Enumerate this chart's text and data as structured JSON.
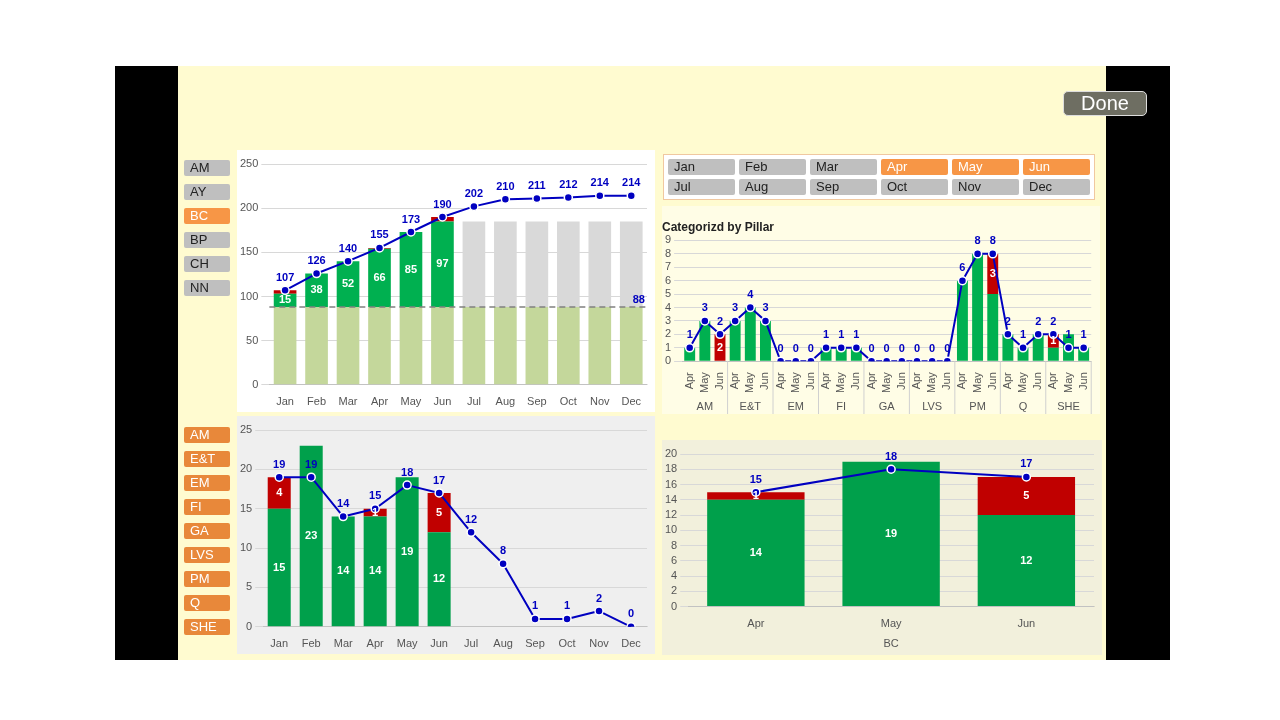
{
  "chart_data": [
    {
      "type": "other",
      "annotations": [
        "Done"
      ]
    },
    {
      "type": "other",
      "categories": [
        "AM",
        "AY",
        "BC",
        "BP",
        "CH",
        "NN"
      ],
      "colors": [
        "#bfbfbf",
        "#bfbfbf",
        "#f79646",
        "#bfbfbf",
        "#bfbfbf",
        "#bfbfbf"
      ]
    },
    {
      "type": "bar",
      "stacked": true,
      "categories": [
        "Jan",
        "Feb",
        "Mar",
        "Apr",
        "May",
        "Jun",
        "Jul",
        "Aug",
        "Sep",
        "Oct",
        "Nov",
        "Dec"
      ],
      "ylim": [
        0,
        250
      ],
      "yticks": [
        0,
        50,
        100,
        150,
        200,
        250
      ],
      "grid": "y",
      "marker": "circle",
      "series": [
        {
          "color": "#c4d79b",
          "values": [
            88,
            88,
            88,
            88,
            88,
            88,
            88,
            88,
            88,
            88,
            88,
            88
          ]
        },
        {
          "color": "#00b050",
          "values": [
            15,
            38,
            52,
            66,
            85,
            97,
            null,
            null,
            null,
            null,
            null,
            null
          ],
          "value_labels": [
            "15",
            "38",
            "52",
            "66",
            "85",
            "97",
            null,
            null,
            null,
            null,
            null,
            null
          ]
        },
        {
          "color": "#c00000",
          "values": [
            4,
            null,
            null,
            1,
            null,
            5,
            null,
            null,
            null,
            null,
            null,
            null
          ]
        },
        {
          "color": "#d9d9d9",
          "values": [
            null,
            null,
            null,
            null,
            null,
            null,
            97,
            97,
            97,
            97,
            97,
            97
          ]
        },
        {
          "type": "line",
          "color": "#0000c0",
          "values": [
            107,
            126,
            140,
            155,
            173,
            190,
            202,
            210,
            211,
            212,
            214,
            214
          ],
          "value_labels": [
            "107",
            "126",
            "140",
            "155",
            "173",
            "190",
            "202",
            "210",
            "211",
            "212",
            "214",
            "214"
          ]
        }
      ],
      "ref_lines": [
        {
          "axis": "y",
          "value": 88,
          "label": "88",
          "color": "#808080",
          "line_style": "dashed"
        }
      ]
    },
    {
      "type": "other",
      "categories": [
        "Jan",
        "Feb",
        "Mar",
        "Apr",
        "May",
        "Jun",
        "Jul",
        "Aug",
        "Sep",
        "Oct",
        "Nov",
        "Dec"
      ],
      "colors": [
        "#bfbfbf",
        "#bfbfbf",
        "#bfbfbf",
        "#f79646",
        "#f79646",
        "#f79646",
        "#bfbfbf",
        "#bfbfbf",
        "#bfbfbf",
        "#bfbfbf",
        "#bfbfbf",
        "#bfbfbf"
      ]
    },
    {
      "type": "bar",
      "stacked": true,
      "title": "Categorizd by Pillar",
      "categories": [
        "Apr",
        "May",
        "Jun",
        "Apr",
        "May",
        "Jun",
        "Apr",
        "May",
        "Jun",
        "Apr",
        "May",
        "Jun",
        "Apr",
        "May",
        "Jun",
        "Apr",
        "May",
        "Jun",
        "Apr",
        "May",
        "Jun",
        "Apr",
        "May",
        "Jun",
        "Apr",
        "May",
        "Jun"
      ],
      "ylim": [
        0,
        9
      ],
      "yticks": [
        0,
        1,
        2,
        3,
        4,
        5,
        6,
        7,
        8,
        9
      ],
      "grid": "y",
      "marker": "circle",
      "annotations": [
        "AM",
        "E&T",
        "EM",
        "FI",
        "GA",
        "LVS",
        "PM",
        "Q",
        "SHE"
      ],
      "series": [
        {
          "color": "#00b050",
          "values": [
            1,
            3,
            0,
            3,
            4,
            3,
            0,
            0,
            0,
            1,
            1,
            1,
            0,
            0,
            0,
            0,
            0,
            0,
            6,
            8,
            5,
            2,
            1,
            2,
            1,
            2,
            1
          ]
        },
        {
          "color": "#c00000",
          "values": [
            null,
            null,
            2,
            null,
            null,
            null,
            null,
            null,
            null,
            null,
            null,
            null,
            null,
            null,
            null,
            null,
            null,
            null,
            null,
            null,
            3,
            null,
            null,
            null,
            1,
            null,
            null
          ],
          "value_labels": [
            null,
            null,
            "2",
            null,
            null,
            null,
            null,
            null,
            null,
            null,
            null,
            null,
            null,
            null,
            null,
            null,
            null,
            null,
            null,
            null,
            "3",
            null,
            null,
            null,
            "1",
            null,
            null
          ]
        },
        {
          "type": "line",
          "color": "#0000c0",
          "values": [
            1,
            3,
            2,
            3,
            4,
            3,
            0,
            0,
            0,
            1,
            1,
            1,
            0,
            0,
            0,
            0,
            0,
            0,
            6,
            8,
            8,
            2,
            1,
            2,
            2,
            1,
            1
          ],
          "value_labels": [
            "1",
            "3",
            "2",
            "3",
            "4",
            "3",
            "0",
            "0",
            "0",
            "1",
            "1",
            "1",
            "0",
            "0",
            "0",
            "0",
            "0",
            "0",
            "6",
            "8",
            "8",
            "2",
            "1",
            "2",
            "2",
            "1",
            "1"
          ]
        }
      ]
    },
    {
      "type": "other",
      "categories": [
        "AM",
        "E&T",
        "EM",
        "FI",
        "GA",
        "LVS",
        "PM",
        "Q",
        "SHE"
      ],
      "colors": [
        "#e8883a",
        "#e8883a",
        "#e8883a",
        "#e8883a",
        "#e8883a",
        "#e8883a",
        "#e8883a",
        "#e8883a",
        "#e8883a"
      ]
    },
    {
      "type": "bar",
      "stacked": true,
      "categories": [
        "Jan",
        "Feb",
        "Mar",
        "Apr",
        "May",
        "Jun",
        "Jul",
        "Aug",
        "Sep",
        "Oct",
        "Nov",
        "Dec"
      ],
      "ylim": [
        0,
        25
      ],
      "yticks": [
        0,
        5,
        10,
        15,
        20,
        25
      ],
      "grid": "y",
      "marker": "circle",
      "series": [
        {
          "color": "#00a04b",
          "values": [
            15,
            23,
            14,
            14,
            19,
            12,
            null,
            null,
            null,
            null,
            null,
            null
          ],
          "value_labels": [
            "15",
            "23",
            "14",
            "14",
            "19",
            "12",
            null,
            null,
            null,
            null,
            null,
            null
          ]
        },
        {
          "color": "#c00000",
          "values": [
            4,
            null,
            null,
            1,
            null,
            5,
            null,
            null,
            null,
            null,
            null,
            null
          ],
          "value_labels": [
            "4",
            null,
            null,
            "1",
            null,
            "5",
            null,
            null,
            null,
            null,
            null,
            null
          ]
        },
        {
          "type": "line",
          "color": "#0000c0",
          "values": [
            19,
            19,
            14,
            15,
            18,
            17,
            12,
            8,
            1,
            1,
            2,
            0
          ],
          "value_labels": [
            "19",
            "19",
            "14",
            "15",
            "18",
            "17",
            "12",
            "8",
            "1",
            "1",
            "2",
            "0"
          ]
        }
      ]
    },
    {
      "type": "bar",
      "stacked": true,
      "categories": [
        "Apr",
        "May",
        "Jun"
      ],
      "xlabel": "BC",
      "ylim": [
        0,
        20
      ],
      "yticks": [
        0,
        2,
        4,
        6,
        8,
        10,
        12,
        14,
        16,
        18,
        20
      ],
      "grid": "y",
      "marker": "circle",
      "series": [
        {
          "color": "#00a04b",
          "values": [
            14,
            19,
            12
          ],
          "value_labels": [
            "14",
            "19",
            "12"
          ]
        },
        {
          "color": "#c00000",
          "values": [
            1,
            null,
            5
          ],
          "value_labels": [
            "1",
            null,
            "5"
          ]
        },
        {
          "type": "line",
          "color": "#0000c0",
          "values": [
            15,
            18,
            17
          ],
          "value_labels": [
            "15",
            "18",
            "17"
          ]
        }
      ]
    }
  ]
}
